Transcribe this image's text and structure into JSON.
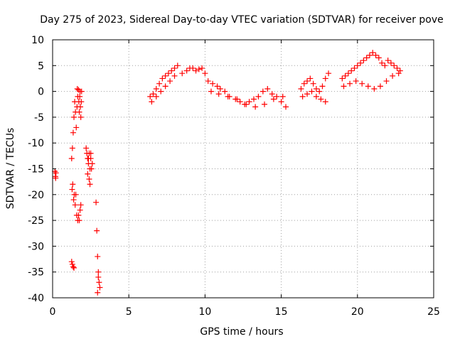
{
  "chart_data": {
    "type": "scatter",
    "title": "Day 275 of 2023, Sidereal Day-to-day VTEC variation (SDTVAR) for receiver pove",
    "xlabel": "GPS time / hours",
    "ylabel": "SDTVAR / TECUs",
    "xlim": [
      0,
      25
    ],
    "ylim": [
      -40,
      10
    ],
    "xticks": [
      0,
      5,
      10,
      15,
      20,
      25
    ],
    "yticks": [
      10,
      5,
      0,
      -5,
      -10,
      -15,
      -20,
      -25,
      -30,
      -35,
      -40
    ],
    "grid": true,
    "marker": "+",
    "colors": {
      "series": "#ff0000",
      "grid": "#a0a0a0",
      "axes": "#000000"
    },
    "series": [
      {
        "name": "SDTVAR",
        "x": [
          0.15,
          0.18,
          0.22,
          0.2,
          1.25,
          1.3,
          1.35,
          1.4,
          1.45,
          1.5,
          1.55,
          1.6,
          1.62,
          1.65,
          1.7,
          1.72,
          1.75,
          1.78,
          1.8,
          1.82,
          1.85,
          1.88,
          1.9,
          1.28,
          1.32,
          1.38,
          1.42,
          1.48,
          1.52,
          1.58,
          1.65,
          1.7,
          1.75,
          1.8,
          1.85,
          1.25,
          1.3,
          1.35,
          1.4,
          2.2,
          2.25,
          2.3,
          2.35,
          2.4,
          2.45,
          2.5,
          2.3,
          2.4,
          2.5,
          2.55,
          2.6,
          2.45,
          2.35,
          2.85,
          2.9,
          2.95,
          3.0,
          3.05,
          3.1,
          2.95,
          3.0,
          6.4,
          6.6,
          6.8,
          7.0,
          7.2,
          7.4,
          7.6,
          7.8,
          8.0,
          8.2,
          6.5,
          6.8,
          7.1,
          7.4,
          7.7,
          8.0,
          8.5,
          8.8,
          9.0,
          9.2,
          9.4,
          9.6,
          9.8,
          10.0,
          10.2,
          10.5,
          10.8,
          11.0,
          11.3,
          11.6,
          12.0,
          12.3,
          12.6,
          12.9,
          13.2,
          13.5,
          13.8,
          14.1,
          14.4,
          14.7,
          15.0,
          15.3,
          10.4,
          10.9,
          11.5,
          12.1,
          12.7,
          13.3,
          13.9,
          14.5,
          15.1,
          16.3,
          16.5,
          16.7,
          16.9,
          17.1,
          17.3,
          17.5,
          17.7,
          17.9,
          18.1,
          16.4,
          16.7,
          17.0,
          17.3,
          17.6,
          17.9,
          19.0,
          19.2,
          19.4,
          19.6,
          19.8,
          20.0,
          20.2,
          20.4,
          20.6,
          20.8,
          21.0,
          21.2,
          21.4,
          21.6,
          21.8,
          22.0,
          22.2,
          22.4,
          22.6,
          22.8,
          19.1,
          19.5,
          19.9,
          20.3,
          20.7,
          21.1,
          21.5,
          21.9,
          22.3,
          22.7
        ],
        "y": [
          -15.5,
          -16.5,
          -15.8,
          -16.8,
          -13,
          -11,
          -8,
          -5,
          -2,
          -4,
          -7,
          -3,
          0.5,
          -1,
          0.3,
          -2,
          -4,
          -1,
          0,
          -3,
          -5,
          -2,
          0,
          -19,
          -18,
          -21,
          -20,
          -22,
          -20,
          -24,
          -25,
          -24,
          -25,
          -23,
          -22,
          -33,
          -33.5,
          -34,
          -34.2,
          -11,
          -12,
          -13,
          -14,
          -12,
          -15,
          -13,
          -16,
          -17,
          -12,
          -15,
          -14,
          -18,
          -13,
          -21.5,
          -27,
          -32,
          -35,
          -37,
          -38,
          -39,
          -36,
          -1,
          -0.5,
          0.5,
          1.5,
          2.5,
          3,
          3.5,
          4,
          4.5,
          5,
          -2,
          -1,
          0,
          1,
          2,
          3,
          3.5,
          4,
          4.5,
          4.5,
          4,
          4.3,
          4.5,
          3.5,
          2,
          1.5,
          1,
          0.5,
          0,
          -1,
          -1.5,
          -2,
          -2.5,
          -2,
          -1.5,
          -1,
          0,
          0.5,
          -0.5,
          -1,
          -2,
          -3,
          0,
          -0.5,
          -1,
          -1.5,
          -2.5,
          -3,
          -2.5,
          -1.5,
          -1,
          0.5,
          1.5,
          2,
          2.5,
          1.5,
          0.5,
          0,
          1,
          2.5,
          3.5,
          -1,
          -0.5,
          0,
          -1,
          -1.5,
          -2,
          2.5,
          3,
          3.5,
          4,
          4.5,
          5,
          5.5,
          6,
          6.5,
          7,
          7.5,
          7,
          6.5,
          5.5,
          5,
          6,
          5.5,
          5,
          4.5,
          4,
          1,
          1.5,
          2,
          1.5,
          1,
          0.5,
          1,
          2,
          3,
          3.5
        ]
      }
    ]
  }
}
